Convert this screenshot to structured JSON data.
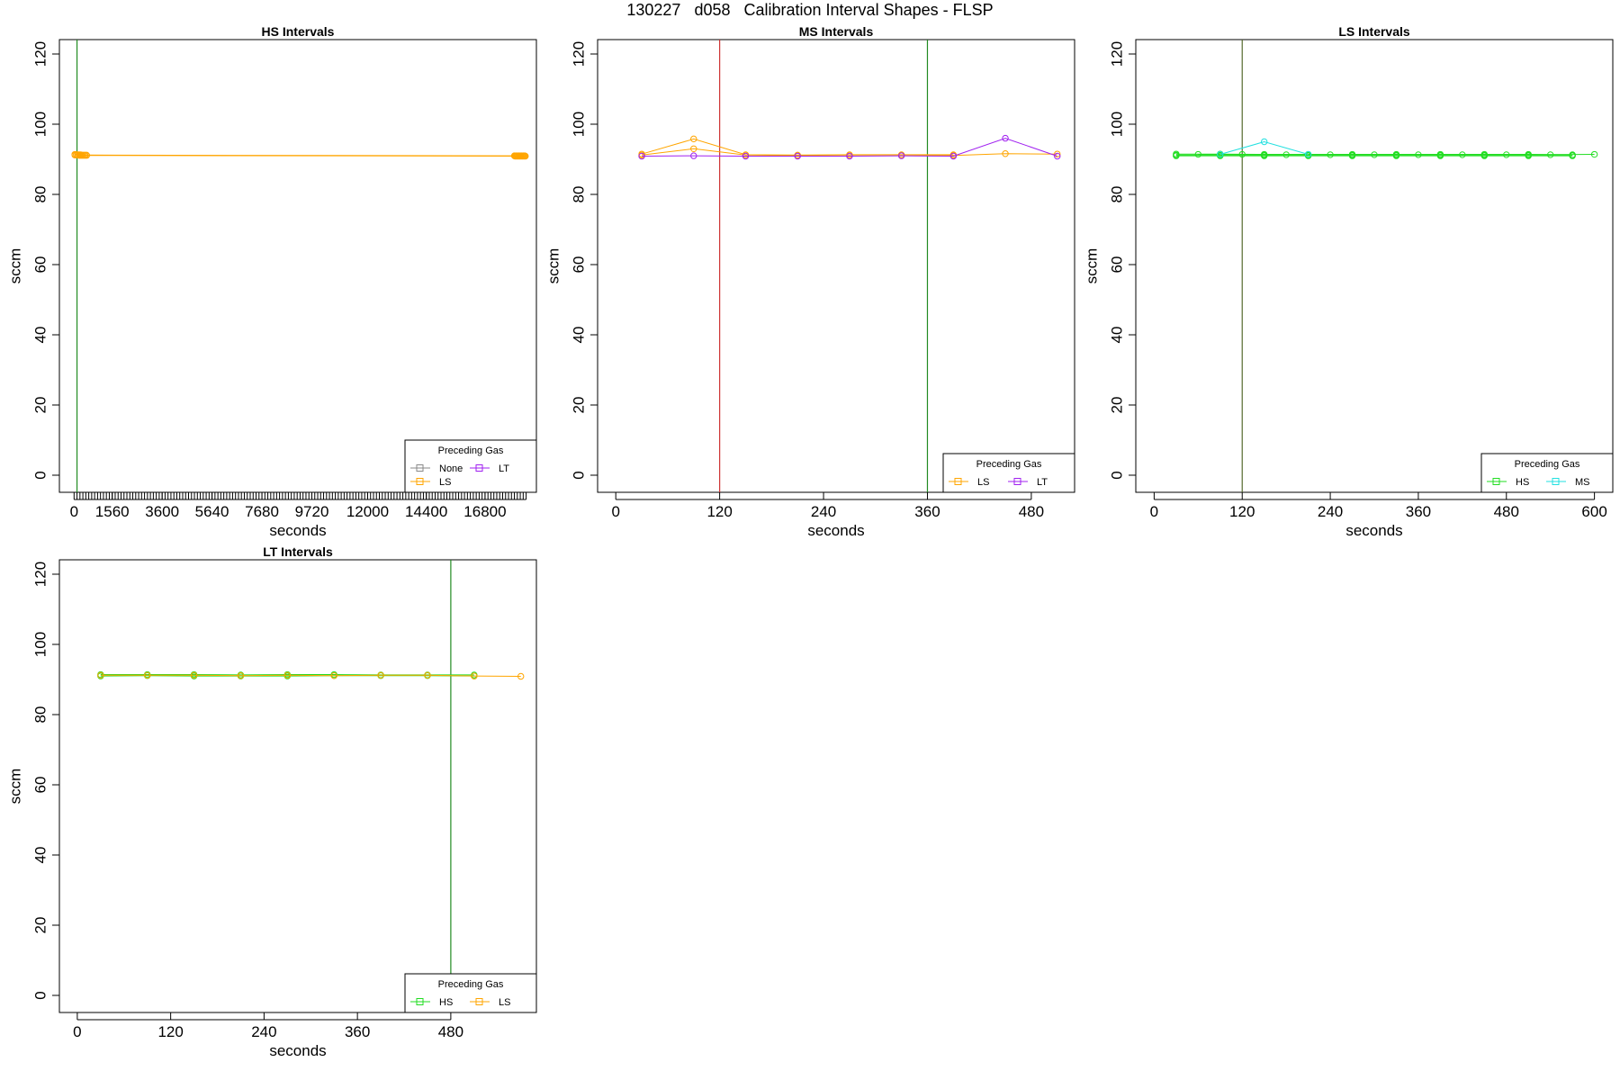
{
  "page_title": "130227   d058   Calibration Interval Shapes - FLSP",
  "colors": {
    "HS": "#22dd22",
    "MS": "#22e0e0",
    "LS": "#ffa500",
    "LT": "#a020f0",
    "None": "#888888",
    "vline_green": "#228b22",
    "vline_red": "#cd3333",
    "vline_dark": "#556b2f"
  },
  "chart_data": [
    {
      "id": "hs",
      "type": "line",
      "title": "HS Intervals",
      "xlabel": "seconds",
      "ylabel": "sccm",
      "xlim": [
        -600,
        18900
      ],
      "ylim": [
        0,
        120
      ],
      "grid": false,
      "x_ticks": [
        {
          "value": 0,
          "label": "0"
        },
        {
          "value": 1560,
          "label": "1560"
        },
        {
          "value": 3600,
          "label": "3600"
        },
        {
          "value": 5640,
          "label": "5640"
        },
        {
          "value": 7680,
          "label": "7680"
        },
        {
          "value": 9720,
          "label": "9720"
        },
        {
          "value": 12000,
          "label": "12000"
        },
        {
          "value": 14400,
          "label": "14400"
        },
        {
          "value": 16800,
          "label": "16800"
        }
      ],
      "x_minor_ticks": {
        "start": 120,
        "end": 18480,
        "step": 120
      },
      "y_ticks": [
        0,
        20,
        40,
        60,
        80,
        100,
        120
      ],
      "vlines": [
        {
          "x": 120,
          "color": "vline_green"
        }
      ],
      "legend": {
        "title": "Preceding Gas",
        "entries": [
          "None",
          "LT",
          "LS"
        ],
        "columns": 2,
        "position": "bottom-right"
      },
      "series": [
        {
          "name": "LS",
          "color": "LS",
          "x": [
            30,
            90,
            150,
            210,
            270,
            330,
            390,
            450,
            510,
            18000,
            18060,
            18120,
            18180,
            18240,
            18300,
            18360,
            18420
          ],
          "y": [
            91.4,
            91.4,
            91.3,
            91.3,
            91.3,
            91.2,
            91.2,
            91.2,
            91.2,
            91.0,
            91.0,
            91.0,
            91.0,
            91.0,
            91.0,
            91.0,
            91.0
          ]
        },
        {
          "name": "LS",
          "color": "LS",
          "x": [
            35,
            95,
            155,
            215,
            275,
            335,
            395,
            455,
            515,
            18030,
            18090,
            18150,
            18210,
            18270,
            18330,
            18390,
            18450
          ],
          "y": [
            91.2,
            91.2,
            91.2,
            91.1,
            91.1,
            91.1,
            91.1,
            91.1,
            91.1,
            90.9,
            90.9,
            90.9,
            90.9,
            90.9,
            90.9,
            90.9,
            90.9
          ]
        }
      ]
    },
    {
      "id": "ms",
      "type": "line",
      "title": "MS Intervals",
      "xlabel": "seconds",
      "ylabel": "sccm",
      "xlim": [
        -21,
        530
      ],
      "ylim": [
        0,
        120
      ],
      "grid": false,
      "x_ticks": [
        {
          "value": 0,
          "label": "0"
        },
        {
          "value": 120,
          "label": "120"
        },
        {
          "value": 240,
          "label": "240"
        },
        {
          "value": 360,
          "label": "360"
        },
        {
          "value": 480,
          "label": "480"
        }
      ],
      "y_ticks": [
        0,
        20,
        40,
        60,
        80,
        100,
        120
      ],
      "vlines": [
        {
          "x": 120,
          "color": "vline_red"
        },
        {
          "x": 360,
          "color": "vline_green"
        }
      ],
      "legend": {
        "title": "Preceding Gas",
        "entries": [
          "LS",
          "LT"
        ],
        "columns": 2,
        "position": "bottom-right"
      },
      "series": [
        {
          "name": "LS",
          "color": "LS",
          "x": [
            30,
            90,
            150,
            210,
            270,
            330,
            390
          ],
          "y": [
            91.5,
            95.8,
            91.3,
            91.2,
            91.3,
            91.3,
            91.3
          ]
        },
        {
          "name": "LS",
          "color": "LS",
          "x": [
            30,
            90,
            150,
            210,
            270,
            330,
            390,
            450,
            510
          ],
          "y": [
            91.2,
            93.0,
            91.2,
            91.1,
            91.2,
            91.2,
            91.1,
            91.6,
            91.5
          ]
        },
        {
          "name": "LT",
          "color": "LT",
          "x": [
            30,
            90,
            150,
            210,
            270,
            330,
            390,
            450,
            510
          ],
          "y": [
            90.9,
            91.0,
            90.9,
            90.9,
            90.9,
            91.0,
            90.9,
            96.0,
            90.9
          ]
        }
      ]
    },
    {
      "id": "ls",
      "type": "line",
      "title": "LS Intervals",
      "xlabel": "seconds",
      "ylabel": "sccm",
      "xlim": [
        -25,
        625
      ],
      "ylim": [
        0,
        120
      ],
      "grid": false,
      "x_ticks": [
        {
          "value": 0,
          "label": "0"
        },
        {
          "value": 120,
          "label": "120"
        },
        {
          "value": 240,
          "label": "240"
        },
        {
          "value": 360,
          "label": "360"
        },
        {
          "value": 480,
          "label": "480"
        },
        {
          "value": 600,
          "label": "600"
        }
      ],
      "y_ticks": [
        0,
        20,
        40,
        60,
        80,
        100,
        120
      ],
      "vlines": [
        {
          "x": 120,
          "color": "vline_dark"
        }
      ],
      "legend": {
        "title": "Preceding Gas",
        "entries": [
          "HS",
          "MS"
        ],
        "columns": 2,
        "position": "bottom-right"
      },
      "series": [
        {
          "name": "HS",
          "color": "HS",
          "x": [
            30,
            90,
            150,
            210,
            270,
            330,
            390,
            450,
            510,
            570
          ],
          "y": [
            91.5,
            91.5,
            91.4,
            91.4,
            91.4,
            91.4,
            91.4,
            91.4,
            91.4,
            91.3
          ]
        },
        {
          "name": "HS",
          "color": "HS",
          "x": [
            30,
            90,
            150,
            210,
            270,
            330,
            390,
            450,
            510,
            570
          ],
          "y": [
            91.2,
            91.2,
            91.2,
            91.2,
            91.2,
            91.2,
            91.2,
            91.2,
            91.2,
            91.2
          ]
        },
        {
          "name": "HS",
          "color": "HS",
          "x": [
            30,
            90,
            150,
            210,
            270,
            330,
            390,
            450,
            510,
            570
          ],
          "y": [
            91.0,
            91.0,
            91.0,
            91.0,
            91.0,
            91.0,
            91.0,
            91.0,
            91.0,
            91.0
          ]
        },
        {
          "name": "HS",
          "color": "HS",
          "x": [
            60,
            120,
            180,
            240,
            300,
            360,
            420,
            480,
            540,
            600
          ],
          "y": [
            91.4,
            91.4,
            91.3,
            91.3,
            91.3,
            91.3,
            91.3,
            91.3,
            91.3,
            91.4
          ]
        },
        {
          "name": "MS",
          "color": "MS",
          "x": [
            90,
            150,
            210
          ],
          "y": [
            91.4,
            95.0,
            91.4
          ]
        }
      ]
    },
    {
      "id": "lt",
      "type": "line",
      "title": "LT Intervals",
      "xlabel": "seconds",
      "ylabel": "sccm",
      "xlim": [
        -23,
        590
      ],
      "ylim": [
        0,
        120
      ],
      "grid": false,
      "x_ticks": [
        {
          "value": 0,
          "label": "0"
        },
        {
          "value": 120,
          "label": "120"
        },
        {
          "value": 240,
          "label": "240"
        },
        {
          "value": 360,
          "label": "360"
        },
        {
          "value": 480,
          "label": "480"
        }
      ],
      "y_ticks": [
        0,
        20,
        40,
        60,
        80,
        100,
        120
      ],
      "vlines": [
        {
          "x": 480,
          "color": "vline_green"
        }
      ],
      "legend": {
        "title": "Preceding Gas",
        "entries": [
          "HS",
          "LS"
        ],
        "columns": 2,
        "position": "bottom-right"
      },
      "series": [
        {
          "name": "HS",
          "color": "HS",
          "x": [
            30,
            90,
            150,
            210,
            270,
            330,
            390,
            450,
            510
          ],
          "y": [
            91.4,
            91.4,
            91.4,
            91.3,
            91.4,
            91.4,
            91.3,
            91.3,
            91.3
          ]
        },
        {
          "name": "HS",
          "color": "HS",
          "x": [
            30,
            90,
            150,
            210,
            270,
            330,
            390,
            450,
            510
          ],
          "y": [
            91.0,
            91.1,
            91.0,
            91.0,
            91.0,
            91.1,
            91.1,
            91.1,
            91.0
          ]
        },
        {
          "name": "LS",
          "color": "LS",
          "x": [
            30,
            90,
            150,
            210,
            270,
            330,
            390,
            450,
            510,
            570
          ],
          "y": [
            91.2,
            91.2,
            91.2,
            91.1,
            91.2,
            91.1,
            91.2,
            91.2,
            91.0,
            90.9
          ]
        }
      ]
    }
  ]
}
